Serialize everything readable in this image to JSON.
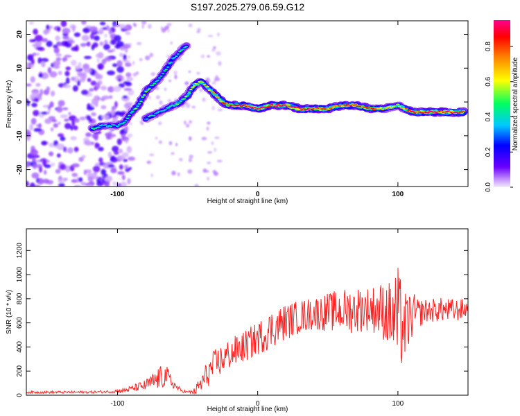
{
  "chart_data": [
    {
      "type": "heatmap",
      "title": "S197.2025.279.06.59.G12",
      "xlabel": "Height of straight line (km)",
      "ylabel": "Frequency (Hz)",
      "xlim": [
        -165,
        150
      ],
      "ylim": [
        -25,
        24
      ],
      "xticks": [
        -100,
        0,
        100
      ],
      "xtick_labels": [
        "-100",
        "0",
        "100"
      ],
      "yticks": [
        -20,
        -10,
        0,
        10,
        20
      ],
      "ytick_labels": [
        "-20",
        "-10",
        "0",
        "10",
        "20"
      ],
      "colorbar": {
        "label": "Normalized spectral amplitude",
        "range": [
          0,
          0.95
        ],
        "ticks": [
          0,
          0.2,
          0.4,
          0.6,
          0.8
        ],
        "tick_labels": [
          "0.0",
          "0.2",
          "0.4",
          "0.6",
          "0.8"
        ],
        "colors": [
          "#f4ecff",
          "#c08cff",
          "#6a00ff",
          "#0000ff",
          "#00c8ff",
          "#00ff60",
          "#ffff00",
          "#ff8000",
          "#ff0000",
          "#ff0090"
        ]
      },
      "ridge_main": {
        "x": [
          -118,
          -110,
          -100,
          -95,
          -90,
          -85,
          -80,
          -75,
          -70,
          -65,
          -60,
          -55,
          -50
        ],
        "freq": [
          -8,
          -7,
          -7,
          -6,
          -3,
          -1,
          3,
          5,
          7,
          10,
          13,
          15,
          17
        ],
        "amp": [
          0.45,
          0.4,
          0.35,
          0.4,
          0.45,
          0.5,
          0.5,
          0.45,
          0.4,
          0.45,
          0.4,
          0.4,
          0.35
        ]
      },
      "ridge_second": {
        "x": [
          -80,
          -75,
          -70,
          -65,
          -60,
          -55,
          -50,
          -45,
          -40,
          -35,
          -30,
          -25,
          -20,
          -10,
          0,
          10,
          20,
          30,
          40,
          50,
          60,
          70,
          80,
          90,
          100,
          110,
          120,
          130,
          140,
          148
        ],
        "freq": [
          -5,
          -4,
          -3,
          -2,
          -1,
          0,
          2,
          5,
          6,
          4,
          2,
          0,
          -1,
          -1,
          -2,
          -1,
          -1,
          -2,
          -2,
          -2,
          -1,
          -1,
          -2,
          -2,
          -1,
          -3,
          -3,
          -3,
          -3,
          -3
        ],
        "amp": [
          0.35,
          0.4,
          0.35,
          0.4,
          0.45,
          0.5,
          0.55,
          0.6,
          0.6,
          0.55,
          0.7,
          0.75,
          0.8,
          0.85,
          0.9,
          0.85,
          0.9,
          0.9,
          0.85,
          0.8,
          0.75,
          0.85,
          0.8,
          0.6,
          0.55,
          0.85,
          0.9,
          0.85,
          0.9,
          0.85
        ]
      }
    },
    {
      "type": "line",
      "xlabel": "Height of straight line (km)",
      "ylabel": "SNR (10 * v/v)",
      "xlim": [
        -165,
        150
      ],
      "ylim": [
        0,
        1380
      ],
      "xticks": [
        -100,
        0,
        100
      ],
      "xtick_labels": [
        "-100",
        "0",
        "100"
      ],
      "yticks": [
        0,
        200,
        400,
        600,
        800,
        1000,
        1200
      ],
      "ytick_labels": [
        "0",
        "200",
        "400",
        "600",
        "800",
        "1000",
        "1200"
      ],
      "line_color": "#ff2020",
      "envelope": {
        "x": [
          -165,
          -120,
          -105,
          -95,
          -88,
          -80,
          -75,
          -70,
          -65,
          -60,
          -55,
          -50,
          -45,
          -40,
          -35,
          -30,
          -25,
          -20,
          -10,
          0,
          10,
          20,
          30,
          40,
          50,
          60,
          70,
          80,
          90,
          95,
          100,
          105,
          110,
          115,
          120,
          130,
          140,
          150
        ],
        "center": [
          25,
          25,
          30,
          40,
          60,
          80,
          110,
          140,
          160,
          90,
          40,
          25,
          30,
          100,
          190,
          260,
          300,
          340,
          400,
          470,
          550,
          610,
          650,
          680,
          690,
          700,
          710,
          720,
          700,
          650,
          620,
          560,
          660,
          680,
          700,
          710,
          700,
          720
        ],
        "spread": [
          10,
          10,
          12,
          20,
          30,
          50,
          70,
          100,
          90,
          40,
          15,
          10,
          30,
          90,
          120,
          130,
          130,
          130,
          130,
          140,
          160,
          150,
          140,
          140,
          160,
          180,
          200,
          180,
          250,
          300,
          450,
          300,
          200,
          120,
          100,
          100,
          100,
          80
        ]
      }
    }
  ]
}
